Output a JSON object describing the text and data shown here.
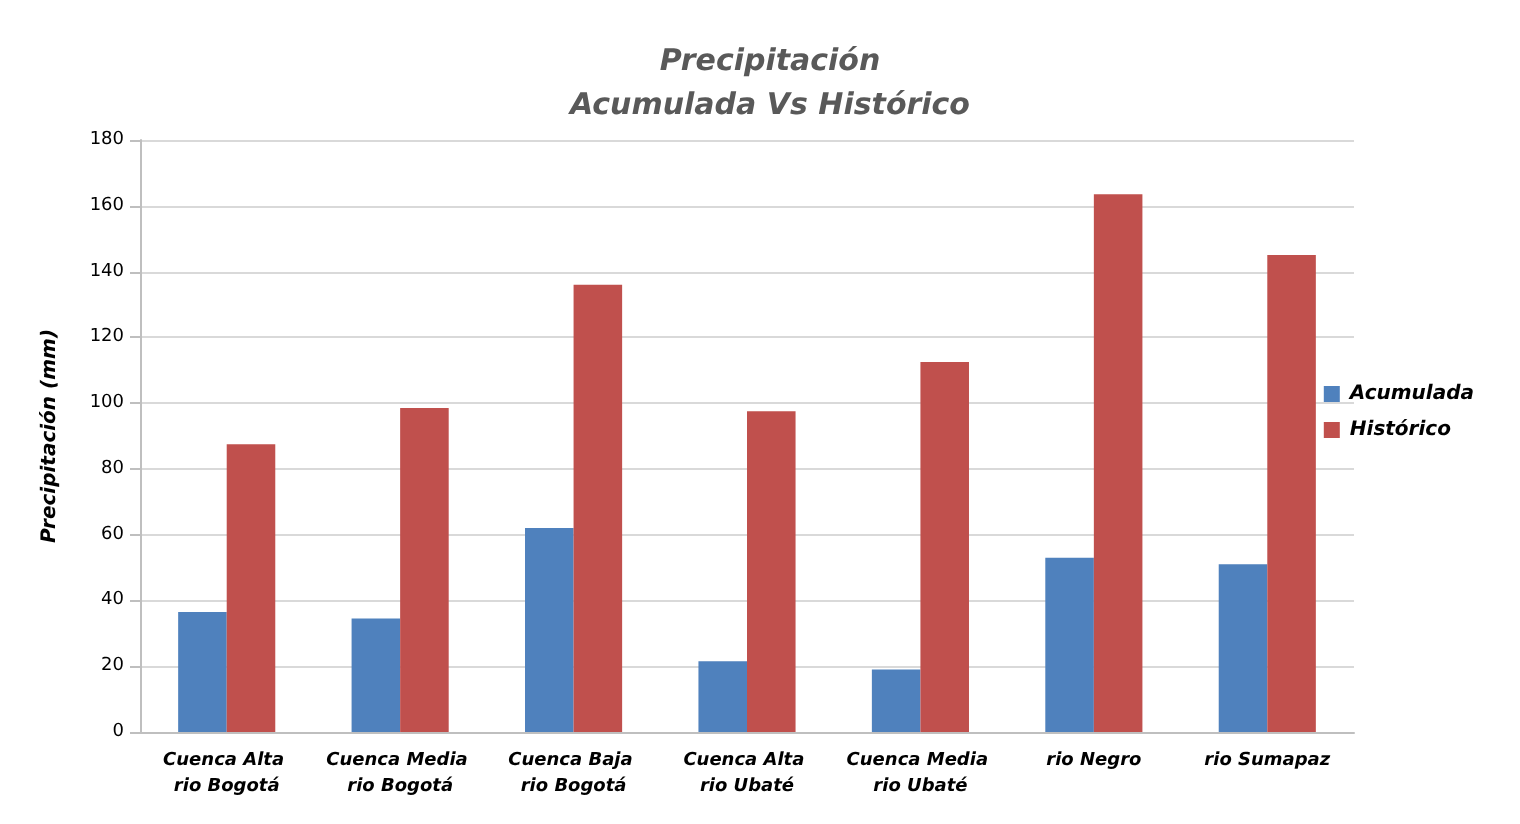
{
  "chart_data": {
    "type": "bar",
    "title": "Precipitación\nAcumulada Vs Histórico",
    "ylabel": "Precipitación (mm)",
    "categories": [
      "Cuenca Alta rio Bogotá",
      "Cuenca Media rio Bogotá",
      "Cuenca Baja rio Bogotá",
      "Cuenca Alta rio Ubaté",
      "Cuenca Media rio Ubaté",
      "rio Negro",
      "rio Sumapaz"
    ],
    "series": [
      {
        "name": "Acumulada",
        "color": "#4f81bd",
        "values": [
          36.5,
          34.5,
          62,
          21.5,
          19,
          53,
          51
        ]
      },
      {
        "name": "Histórico",
        "color": "#c0504d",
        "values": [
          87.5,
          98.5,
          136,
          97.5,
          112.5,
          163.5,
          145
        ]
      }
    ],
    "ylim": [
      0,
      180
    ],
    "yticks": [
      0,
      20,
      40,
      60,
      80,
      100,
      120,
      140,
      160,
      180
    ],
    "grid": "y",
    "legend": "right"
  }
}
